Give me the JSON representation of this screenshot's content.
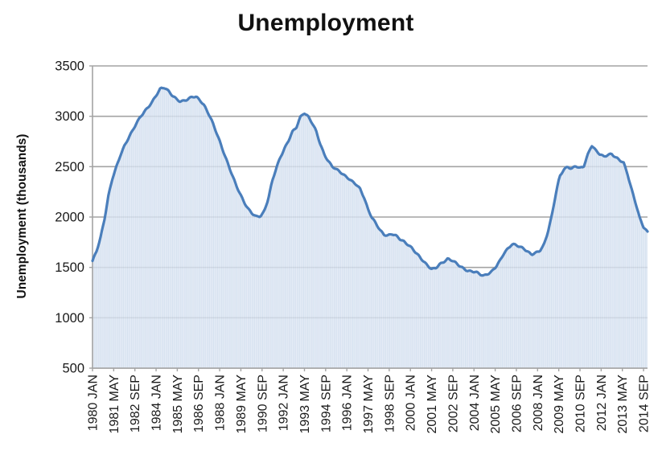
{
  "chart_data": {
    "type": "area",
    "title": "Unemployment",
    "ylabel": "Unemployment (thousands)",
    "series_name": "Unemployment",
    "unit": "thousands",
    "ylim": [
      500,
      3500
    ],
    "yticks": [
      3500,
      3000,
      2500,
      2000,
      1500,
      1000,
      500
    ],
    "x_start": "1980 JAN",
    "x_end": "2014 DEC",
    "x_range_months": 420,
    "x_tick_interval_months": 16,
    "x_tick_labels": [
      "1980 JAN",
      "1981 MAY",
      "1982 SEP",
      "1984 JAN",
      "1985 MAY",
      "1986 SEP",
      "1988 JAN",
      "1989 MAY",
      "1990 SEP",
      "1992 JAN",
      "1993 MAY",
      "1994 SEP",
      "1996 JAN",
      "1997 MAY",
      "1998 SEP",
      "2000 JAN",
      "2001 MAY",
      "2002 SEP",
      "2004 JAN",
      "2005 MAY",
      "2006 SEP",
      "2008 JAN",
      "2009 MAY",
      "2010 SEP",
      "2012 JAN",
      "2013 MAY",
      "2014 SEP"
    ],
    "values_frequency": "quarterly",
    "values_start": "1980 Q1",
    "values": [
      1560,
      1660,
      1800,
      1980,
      2210,
      2380,
      2500,
      2620,
      2710,
      2780,
      2850,
      2930,
      3000,
      3050,
      3090,
      3140,
      3210,
      3280,
      3290,
      3250,
      3200,
      3170,
      3150,
      3160,
      3170,
      3190,
      3190,
      3160,
      3110,
      3030,
      2940,
      2840,
      2740,
      2630,
      2520,
      2410,
      2310,
      2230,
      2150,
      2080,
      2030,
      2000,
      2010,
      2060,
      2180,
      2350,
      2480,
      2590,
      2680,
      2750,
      2840,
      2880,
      2990,
      3040,
      3000,
      2930,
      2850,
      2730,
      2630,
      2560,
      2500,
      2470,
      2450,
      2420,
      2390,
      2350,
      2320,
      2280,
      2200,
      2080,
      1990,
      1930,
      1870,
      1830,
      1820,
      1830,
      1810,
      1780,
      1760,
      1730,
      1690,
      1640,
      1600,
      1560,
      1520,
      1480,
      1490,
      1530,
      1560,
      1590,
      1570,
      1540,
      1510,
      1490,
      1470,
      1460,
      1450,
      1430,
      1420,
      1440,
      1460,
      1500,
      1560,
      1640,
      1690,
      1730,
      1720,
      1700,
      1690,
      1660,
      1630,
      1640,
      1660,
      1720,
      1850,
      2010,
      2220,
      2400,
      2470,
      2505,
      2480,
      2505,
      2480,
      2500,
      2620,
      2715,
      2660,
      2620,
      2600,
      2620,
      2630,
      2590,
      2560,
      2540,
      2430,
      2280,
      2140,
      1990,
      1900,
      1855
    ],
    "grid": "horizontal",
    "legend": "none",
    "colors": {
      "line": "#4a7ebb",
      "fill": "#e2eaf5",
      "fill_stripe": "#cbd9ec",
      "gridline": "#a3a3a3",
      "axis": "#a3a3a3",
      "text": "#1a1a1a",
      "background": "#ffffff"
    }
  }
}
